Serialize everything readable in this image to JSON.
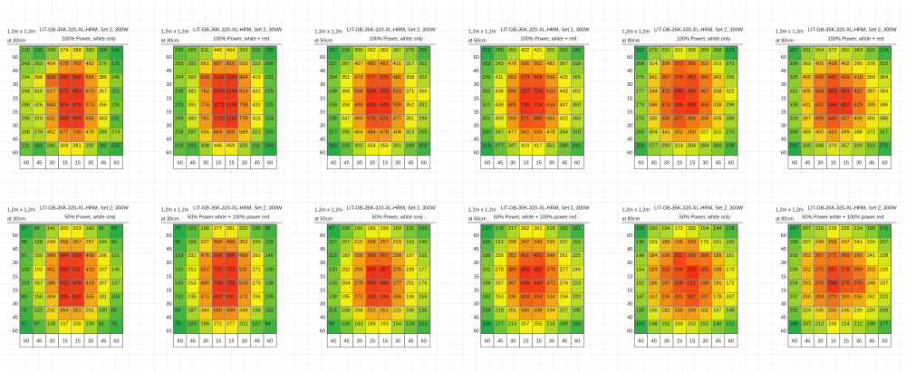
{
  "panels": [
    {
      "size": "1,2m x 1,2m",
      "title": "LIT-GB-35K-320-XL-HRM, Set 2, 300W",
      "subtitle": "100% Power, white only",
      "distance": "at 30cm",
      "row_labels": [
        60,
        45,
        30,
        15,
        15,
        30,
        45,
        60
      ],
      "col_labels": [
        60,
        45,
        30,
        15,
        15,
        30,
        45,
        60
      ],
      "cells": [
        [
          210,
          165,
          243,
          374,
          388,
          283,
          184,
          140
        ],
        [
          243,
          263,
          454,
          679,
          702,
          482,
          270,
          176
        ],
        [
          294,
          398,
          818,
          960,
          965,
          656,
          386,
          246
        ],
        [
          294,
          316,
          617,
          972,
          992,
          673,
          357,
          201
        ],
        [
          288,
          325,
          644,
          974,
          979,
          673,
          356,
          235
        ],
        [
          285,
          310,
          631,
          969,
          969,
          655,
          343,
          191
        ],
        [
          298,
          279,
          452,
          677,
          700,
          478,
          289,
          274
        ],
        [
          211,
          164,
          241,
          369,
          381,
          282,
          182,
          155
        ]
      ]
    },
    {
      "size": "1,2m x 1,2m",
      "title": "LIT-GB-35K-320-XL-HRM, Set 2, 300W",
      "subtitle": "100% Power, white + red",
      "distance": "at 30cm",
      "row_labels": [
        60,
        45,
        30,
        15,
        15,
        30,
        45,
        60
      ],
      "col_labels": [
        60,
        45,
        30,
        15,
        15,
        30,
        45,
        60
      ],
      "cells": [
        [
          226,
          265,
          311,
          446,
          464,
          329,
          215,
          159
        ],
        [
          283,
          291,
          561,
          807,
          810,
          593,
          323,
          206
        ],
        [
          294,
          360,
          918,
          1122,
          1151,
          804,
          419,
          231
        ],
        [
          230,
          381,
          763,
          1150,
          1164,
          814,
          431,
          229
        ],
        [
          223,
          391,
          774,
          1175,
          1158,
          798,
          420,
          225
        ],
        [
          259,
          380,
          761,
          1102,
          1157,
          778,
          415,
          224
        ],
        [
          258,
          287,
          555,
          804,
          808,
          589,
          321,
          202
        ],
        [
          218,
          191,
          308,
          446,
          459,
          325,
          211,
          154
        ]
      ]
    },
    {
      "size": "1,2m x 1,2m",
      "title": "LIT-GB-35K-320-XL-HRM, Set 2, 300W",
      "subtitle": "100% Power, white only",
      "distance": "at 50cm",
      "row_labels": [
        60,
        45,
        30,
        15,
        15,
        30,
        45,
        60
      ],
      "col_labels": [
        60,
        45,
        30,
        15,
        15,
        30,
        45,
        60
      ],
      "cells": [
        [
          187,
          239,
          306,
          362,
          362,
          307,
          270,
          209
        ],
        [
          227,
          297,
          407,
          480,
          481,
          411,
          317,
          262
        ],
        [
          254,
          351,
          473,
          577,
          576,
          481,
          358,
          302
        ],
        [
          248,
          366,
          508,
          624,
          620,
          512,
          371,
          356
        ],
        [
          258,
          358,
          499,
          626,
          625,
          509,
          362,
          301
        ],
        [
          235,
          347,
          466,
          579,
          572,
          477,
          351,
          299
        ],
        [
          217,
          295,
          404,
          484,
          478,
          408,
          313,
          255
        ],
        [
          182,
          233,
          303,
          354,
          355,
          301,
          243,
          202
        ]
      ]
    },
    {
      "size": "1,2m x 1,2m",
      "title": "LIT-GB-35K-320-XL-HRM, Set 2, 300W",
      "subtitle": "100% Power, white + red",
      "distance": "at 50cm",
      "row_labels": [
        60,
        45,
        30,
        15,
        15,
        30,
        45,
        60
      ],
      "col_labels": [
        60,
        45,
        30,
        15,
        15,
        30,
        45,
        60
      ],
      "cells": [
        [
          219,
          280,
          350,
          422,
          421,
          355,
          292,
          240
        ],
        [
          263,
          342,
          478,
          566,
          562,
          482,
          367,
          318
        ],
        [
          299,
          411,
          563,
          673,
          669,
          566,
          425,
          365
        ],
        [
          301,
          436,
          596,
          727,
          724,
          610,
          442,
          402
        ],
        [
          310,
          439,
          605,
          730,
          714,
          614,
          447,
          360
        ],
        [
          301,
          409,
          560,
          671,
          665,
          561,
          422,
          360
        ],
        [
          260,
          347,
          477,
          562,
          559,
          478,
          364,
          310
        ],
        [
          214,
          277,
          347,
          419,
          417,
          351,
          288,
          241
        ]
      ]
    },
    {
      "size": "1,2m x 1,2m",
      "title": "LIT-GB-35K-320-XL-HRM, Set 2, 300W",
      "subtitle": "100% Power, white only",
      "distance": "at 80cm",
      "row_labels": [
        60,
        45,
        30,
        15,
        15,
        30,
        45,
        60
      ],
      "col_labels": [
        60,
        45,
        30,
        15,
        15,
        30,
        45,
        60
      ],
      "cells": [
        [
          222,
          279,
          291,
          321,
          308,
          289,
          268,
          223
        ],
        [
          258,
          314,
          356,
          373,
          366,
          352,
          319,
          273
        ],
        [
          275,
          341,
          367,
          378,
          382,
          366,
          341,
          295
        ],
        [
          277,
          344,
          372,
          390,
          384,
          367,
          338,
          322
        ],
        [
          279,
          346,
          373,
          386,
          388,
          368,
          338,
          296
        ],
        [
          273,
          335,
          365,
          377,
          366,
          358,
          335,
          286
        ],
        [
          260,
          304,
          341,
          352,
          350,
          327,
          315,
          270
        ],
        [
          228,
          277,
          290,
          314,
          304,
          284,
          266,
          238
        ]
      ]
    },
    {
      "size": "1,2m x 1,2m",
      "title": "LIT-GB-35K-320-XL-HRM, Set 2, 300W",
      "subtitle": "100% Power, white + red",
      "distance": "at 80cm",
      "row_labels": [
        60,
        45,
        30,
        15,
        15,
        30,
        45,
        60
      ],
      "col_labels": [
        60,
        45,
        30,
        15,
        15,
        30,
        45,
        60
      ],
      "cells": [
        [
          267,
          331,
          354,
          372,
          360,
          343,
          315,
          274
        ],
        [
          306,
          369,
          405,
          418,
          402,
          390,
          378,
          323
        ],
        [
          325,
          405,
          430,
          442,
          429,
          418,
          390,
          364
        ],
        [
          331,
          405,
          434,
          453,
          451,
          431,
          397,
          384
        ],
        [
          328,
          401,
          432,
          454,
          452,
          429,
          399,
          386
        ],
        [
          329,
          397,
          429,
          440,
          427,
          409,
          390,
          366
        ],
        [
          306,
          369,
          400,
          416,
          399,
          388,
          372,
          317
        ],
        [
          261,
          330,
          348,
          370,
          357,
          339,
          313,
          270
        ]
      ]
    },
    {
      "size": "1,2m x 1,2m",
      "title": "LIT-GB-35K-320-XL-HRM, Set 2, 300W",
      "subtitle": "50% Power, white only",
      "distance": "at 30cm",
      "row_labels": [
        60,
        45,
        30,
        15,
        15,
        30,
        45,
        60
      ],
      "col_labels": [
        60,
        45,
        30,
        15,
        15,
        30,
        45,
        60
      ],
      "cells": [
        [
          57,
          89,
          141,
          200,
          203,
          142,
          95,
          59
        ],
        [
          88,
          128,
          243,
          359,
          357,
          257,
          144,
          96
        ],
        [
          91,
          159,
          389,
          594,
          599,
          409,
          206,
          121
        ],
        [
          102,
          193,
          401,
          624,
          611,
          410,
          207,
          145
        ],
        [
          101,
          167,
          386,
          615,
          608,
          413,
          207,
          137
        ],
        [
          89,
          156,
          304,
          605,
          610,
          355,
          181,
          104
        ],
        [
          72,
          122,
          242,
          354,
          352,
          251,
          130,
          85
        ],
        [
          57,
          87,
          138,
          197,
          200,
          139,
          91,
          70
        ]
      ]
    },
    {
      "size": "1,2m x 1,2m",
      "title": "LIT-GB-35K-320-XL-HRM, Set 2, 300W",
      "subtitle": "50% Power white + 100% power red",
      "distance": "at 30cm",
      "row_labels": [
        60,
        45,
        30,
        15,
        15,
        30,
        45,
        60
      ],
      "col_labels": [
        60,
        45,
        30,
        15,
        15,
        30,
        45,
        60
      ],
      "cells": [
        [
          75,
          121,
          196,
          277,
          281,
          202,
          130,
          95
        ],
        [
          96,
          168,
          327,
          504,
          498,
          352,
          200,
          125
        ],
        [
          123,
          231,
          475,
          669,
          698,
          496,
          260,
          145
        ],
        [
          141,
          251,
          501,
          712,
          722,
          511,
          271,
          138
        ],
        [
          141,
          253,
          480,
          728,
          735,
          516,
          270,
          138
        ],
        [
          131,
          235,
          471,
          693,
          691,
          472,
          256,
          135
        ],
        [
          98,
          187,
          344,
          500,
          499,
          349,
          198,
          122
        ],
        [
          75,
          120,
          195,
          272,
          277,
          201,
          127,
          94
        ]
      ]
    },
    {
      "size": "1,2m x 1,2m",
      "title": "LIT-GB-35K-320-XL-HRM, Set 2, 300W",
      "subtitle": "50% Power, white only",
      "distance": "at 50cm",
      "row_labels": [
        60,
        45,
        30,
        15,
        15,
        30,
        45,
        60
      ],
      "col_labels": [
        60,
        45,
        30,
        15,
        15,
        30,
        45,
        60
      ],
      "cells": [
        [
          87,
          126,
          160,
          189,
          190,
          159,
          131,
          109
        ],
        [
          117,
          157,
          215,
          258,
          257,
          219,
          163,
          140
        ],
        [
          113,
          183,
          258,
          308,
          307,
          258,
          197,
          155
        ],
        [
          130,
          202,
          259,
          355,
          357,
          276,
          199,
          177
        ],
        [
          133,
          204,
          279,
          349,
          346,
          277,
          201,
          176
        ],
        [
          138,
          195,
          272,
          338,
          334,
          266,
          199,
          159
        ],
        [
          114,
          158,
          208,
          252,
          251,
          215,
          166,
          136
        ],
        [
          95,
          126,
          163,
          189,
          193,
          154,
          124,
          101
        ]
      ]
    },
    {
      "size": "1,2m x 1,2m",
      "title": "LIT-GB-35K-320-XL-HRM, Set 2, 300W",
      "subtitle": "50% Power, white + 100% power red",
      "distance": "at 50cm",
      "row_labels": [
        60,
        45,
        30,
        15,
        15,
        30,
        45,
        60
      ],
      "col_labels": [
        60,
        45,
        30,
        15,
        15,
        30,
        45,
        60
      ],
      "cells": [
        [
          137,
          178,
          217,
          262,
          261,
          218,
          182,
          151
        ],
        [
          166,
          221,
          298,
          347,
          343,
          295,
          237,
          192
        ],
        [
          189,
          255,
          351,
          411,
          421,
          346,
          261,
          225
        ],
        [
          202,
          278,
          389,
          456,
          452,
          379,
          277,
          249
        ],
        [
          199,
          267,
          367,
          446,
          442,
          371,
          274,
          223
        ],
        [
          182,
          253,
          336,
          404,
          394,
          334,
          258,
          220
        ],
        [
          164,
          218,
          291,
          345,
          338,
          294,
          227,
          195
        ],
        [
          136,
          177,
          214,
          257,
          255,
          215,
          180,
          150
        ]
      ]
    },
    {
      "size": "1,2m x 1,2m",
      "title": "LIT-GB-35K-320-XL-HRM, Set 2, 300W",
      "subtitle": "50% Power, white only",
      "distance": "at 80cm",
      "row_labels": [
        60,
        45,
        30,
        15,
        15,
        30,
        45,
        60
      ],
      "col_labels": [
        60,
        45,
        30,
        15,
        15,
        30,
        45,
        60
      ],
      "cells": [
        [
          118,
          150,
          154,
          172,
          165,
          154,
          144,
          128
        ],
        [
          136,
          169,
          186,
          190,
          193,
          170,
          161,
          150
        ],
        [
          148,
          184,
          195,
          211,
          202,
          200,
          185,
          161
        ],
        [
          154,
          189,
          203,
          209,
          215,
          205,
          188,
          170
        ],
        [
          152,
          186,
          197,
          208,
          211,
          198,
          181,
          172
        ],
        [
          147,
          182,
          195,
          201,
          207,
          197,
          178,
          167
        ],
        [
          136,
          166,
          182,
          190,
          190,
          182,
          167,
          148
        ],
        [
          120,
          148,
          152,
          169,
          163,
          152,
          140,
          131
        ]
      ]
    },
    {
      "size": "1,2m x 1,2m",
      "title": "LIT-GB-35K-320-XL-HRM, Set 2, 300W",
      "subtitle": "50% Power white + 100% power red",
      "distance": "at 80cm",
      "row_labels": [
        60,
        45,
        30,
        15,
        15,
        30,
        45,
        60
      ],
      "col_labels": [
        60,
        45,
        30,
        15,
        15,
        30,
        45,
        60
      ],
      "cells": [
        [
          167,
          207,
          216,
          238,
          226,
          214,
          199,
          176
        ],
        [
          193,
          227,
          249,
          258,
          247,
          241,
          234,
          207
        ],
        [
          202,
          253,
          267,
          271,
          269,
          260,
          241,
          228
        ],
        [
          209,
          252,
          270,
          281,
          278,
          269,
          252,
          239
        ],
        [
          204,
          251,
          270,
          286,
          278,
          275,
          248,
          237
        ],
        [
          207,
          250,
          264,
          270,
          260,
          256,
          242,
          223
        ],
        [
          191,
          224,
          245,
          255,
          246,
          239,
          230,
          209
        ],
        [
          166,
          207,
          213,
          239,
          224,
          212,
          198,
          177
        ]
      ]
    }
  ]
}
